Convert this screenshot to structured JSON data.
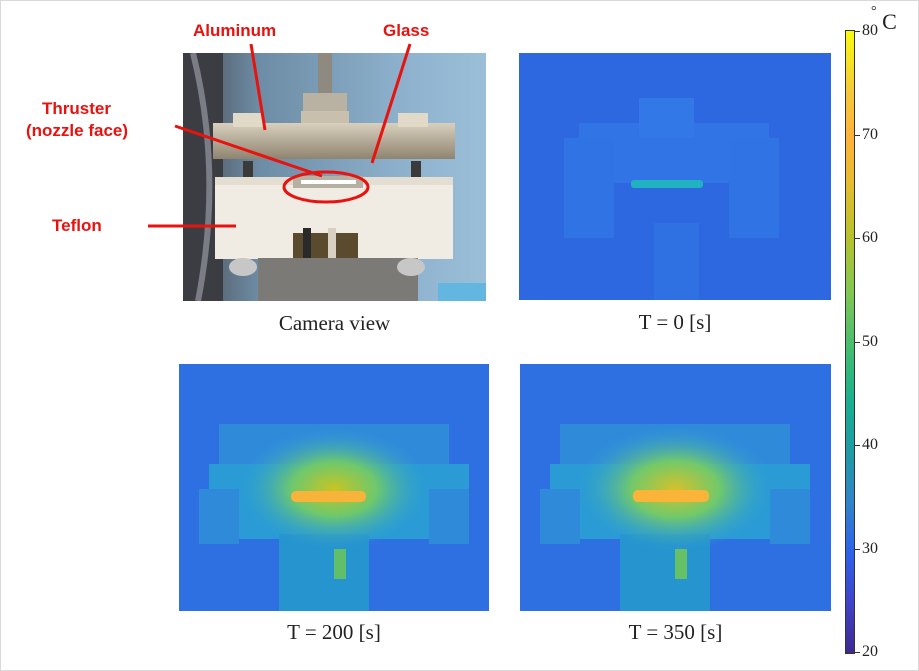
{
  "annotations": {
    "aluminum": "Aluminum",
    "glass": "Glass",
    "thruster_line1": "Thruster",
    "thruster_line2": "(nozzle face)",
    "teflon": "Teflon"
  },
  "panels": {
    "camera": {
      "caption": "Camera view"
    },
    "t0": {
      "caption": "T = 0 [s]",
      "time_s": 0
    },
    "t200": {
      "caption": "T = 200 [s]",
      "time_s": 200
    },
    "t350": {
      "caption": "T = 350 [s]",
      "time_s": 350
    }
  },
  "colorbar": {
    "unit_symbol": "°",
    "unit_letter": "C",
    "ticks": [
      "80",
      "70",
      "60",
      "50",
      "40",
      "30",
      "20"
    ],
    "min": 20,
    "max": 80,
    "colormap": "parula"
  },
  "colors": {
    "annotation": "#e8120f",
    "background_cold": "#2f6bdc",
    "hot_spot": "#f9b43a"
  }
}
